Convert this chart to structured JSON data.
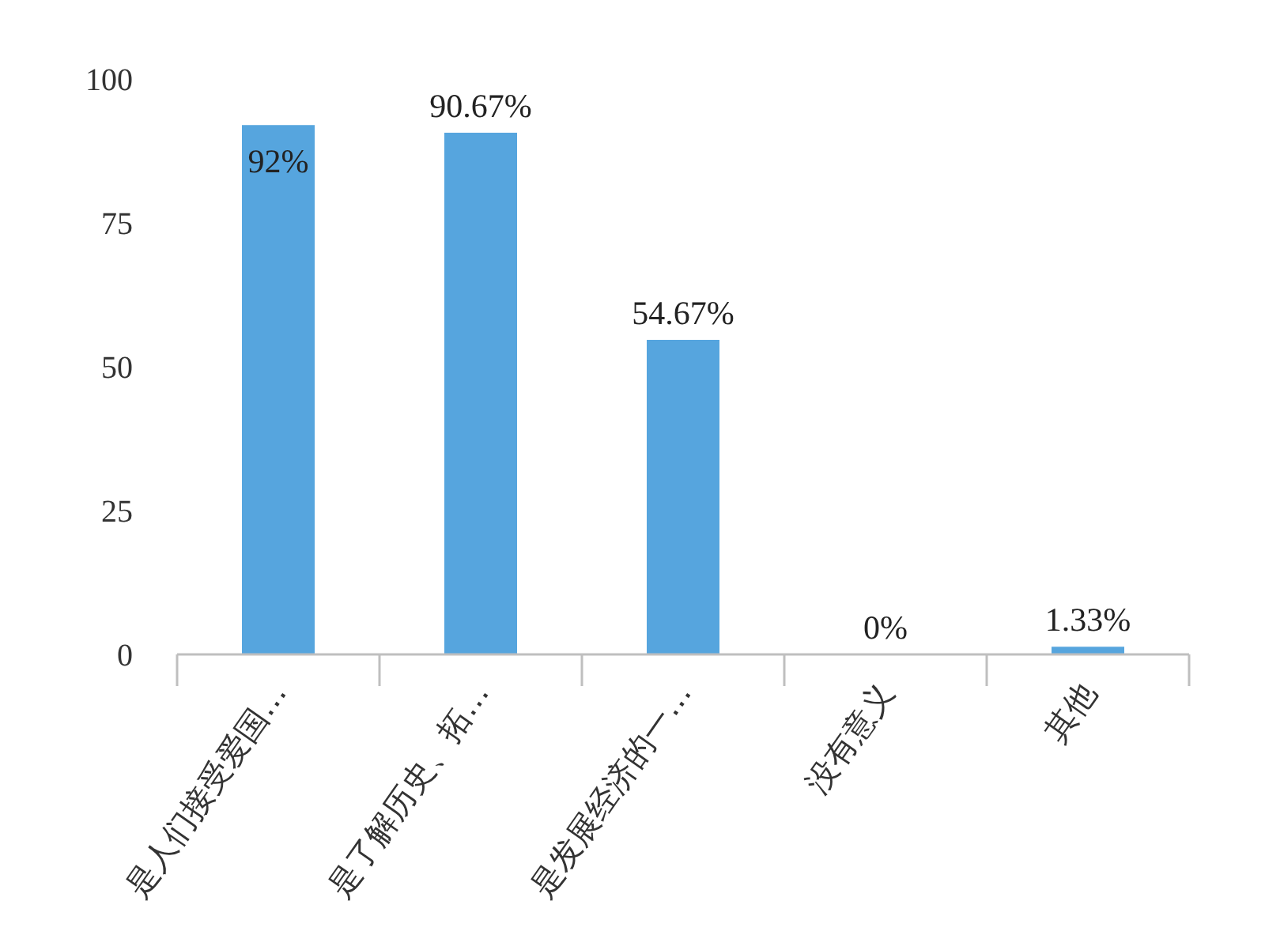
{
  "chart_data": {
    "type": "bar",
    "categories": [
      "是人们接受爱国…",
      "是了解历史、拓…",
      "是发展经济的一…",
      "没有意义",
      "其他"
    ],
    "values": [
      92,
      90.67,
      54.67,
      0,
      1.33
    ],
    "value_labels": [
      "92%",
      "90.67%",
      "54.67%",
      "0%",
      "1.33%"
    ],
    "color": "#56a5de",
    "ylim": [
      0,
      100
    ],
    "yticks": [
      0,
      25,
      50,
      75,
      100
    ]
  }
}
